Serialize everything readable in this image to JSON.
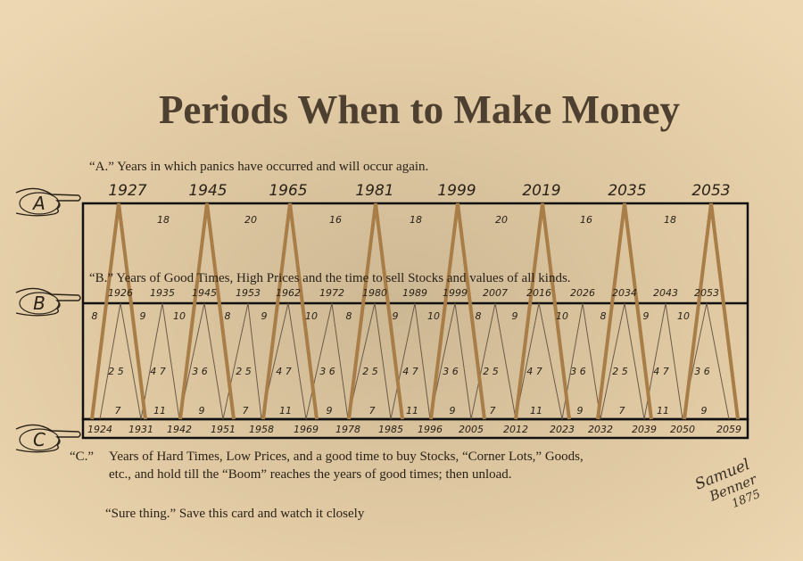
{
  "title": "Periods When to Make Money",
  "row_a": {
    "marker": "A",
    "caption": "“A.” Years in which panics have occurred and will occur again.",
    "years": [
      "1927",
      "1945",
      "1965",
      "1981",
      "1999",
      "2019",
      "2035",
      "2053"
    ],
    "intervals": [
      "18",
      "20",
      "16",
      "18",
      "20",
      "16",
      "18"
    ]
  },
  "row_b": {
    "marker": "B",
    "caption": "“B.” Years of Good Times, High Prices and the time to sell Stocks and values of all kinds.",
    "years": [
      "1926",
      "1935",
      "1945",
      "1953",
      "1962",
      "1972",
      "1980",
      "1989",
      "1999",
      "2007",
      "2016",
      "2026",
      "2034",
      "2043",
      "2053"
    ],
    "top_numbers": [
      "8",
      "9",
      "10",
      "8",
      "9",
      "10",
      "8",
      "9",
      "10",
      "8",
      "9",
      "10",
      "8",
      "9",
      "10"
    ],
    "middle_numbers": [
      "2 5",
      "4 7",
      "3 6",
      "2 5",
      "4 7",
      "3 6",
      "2 5",
      "4 7",
      "3 6",
      "2 5",
      "4 7",
      "3 6",
      "2 5",
      "4 7",
      "3 6"
    ],
    "bottom_numbers": [
      "7",
      "11",
      "9",
      "7",
      "11",
      "9",
      "7",
      "11",
      "9",
      "7",
      "11",
      "9",
      "7",
      "11",
      "9"
    ]
  },
  "row_c": {
    "marker": "C",
    "label": "“C.”",
    "caption_lines": [
      "Years of Hard Times, Low Prices, and a good time to buy Stocks, “Corner Lots,” Goods,",
      "etc., and hold till  the “Boom” reaches the years of good times; then unload."
    ],
    "years": [
      "1924",
      "1931",
      "1942",
      "1951",
      "1958",
      "1969",
      "1978",
      "1985",
      "1996",
      "2005",
      "2012",
      "2023",
      "2032",
      "2039",
      "2050",
      "2059"
    ]
  },
  "note": "“Sure thing.” Save this card and watch it closely",
  "signature": [
    "Samuel",
    "Benner",
    "1875"
  ]
}
